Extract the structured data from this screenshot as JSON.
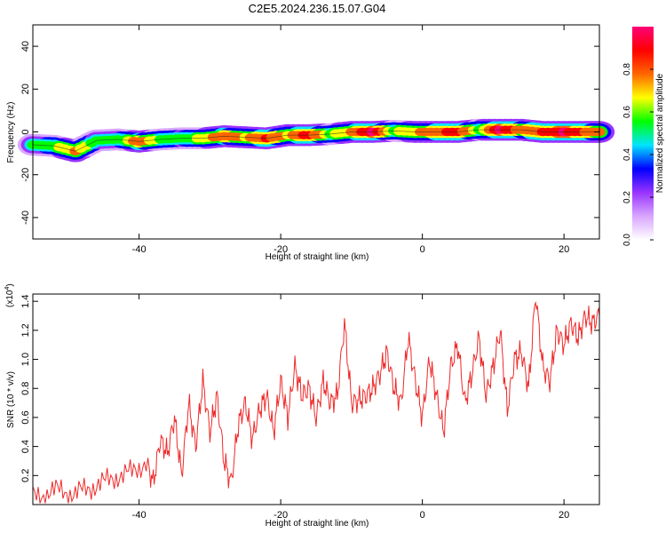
{
  "title": "C2E5.2024.236.15.07.G04",
  "chart_data": [
    {
      "type": "heatmap",
      "xlabel": "Height of straight line (km)",
      "ylabel": "Frequency (Hz)",
      "xlim": [
        -55,
        25
      ],
      "ylim": [
        -50,
        50
      ],
      "xticks": [
        -40,
        -20,
        0,
        20
      ],
      "yticks": [
        -40,
        -20,
        0,
        20,
        40
      ],
      "colorbar": {
        "label": "Normalized spectral amplitude",
        "range": [
          0.0,
          1.0
        ],
        "ticks": [
          0.0,
          0.2,
          0.4,
          0.6,
          0.8
        ],
        "colors": [
          "#ffffff",
          "#d9a6ff",
          "#9933ff",
          "#0000ff",
          "#00e5ff",
          "#00ff00",
          "#ffff00",
          "#ff6600",
          "#ff0000",
          "#ff0077"
        ]
      },
      "ridge": [
        {
          "x": -55,
          "f": -6.0,
          "a": 0.5
        },
        {
          "x": -52,
          "f": -6.5,
          "a": 0.6
        },
        {
          "x": -49,
          "f": -9.0,
          "a": 0.75
        },
        {
          "x": -46,
          "f": -4.0,
          "a": 0.55
        },
        {
          "x": -43,
          "f": -3.5,
          "a": 0.5
        },
        {
          "x": -40,
          "f": -4.5,
          "a": 0.8
        },
        {
          "x": -37,
          "f": -3.5,
          "a": 0.6
        },
        {
          "x": -34,
          "f": -3.0,
          "a": 0.55
        },
        {
          "x": -31,
          "f": -3.0,
          "a": 0.65
        },
        {
          "x": -28,
          "f": -2.0,
          "a": 0.8
        },
        {
          "x": -25,
          "f": -2.5,
          "a": 0.7
        },
        {
          "x": -22,
          "f": -3.0,
          "a": 0.85
        },
        {
          "x": -19,
          "f": -1.5,
          "a": 0.7
        },
        {
          "x": -16,
          "f": -1.5,
          "a": 0.9
        },
        {
          "x": -13,
          "f": -1.0,
          "a": 0.6
        },
        {
          "x": -10,
          "f": 0.0,
          "a": 0.75
        },
        {
          "x": -7,
          "f": 0.0,
          "a": 0.95
        },
        {
          "x": -4,
          "f": 0.5,
          "a": 0.6
        },
        {
          "x": -1,
          "f": 0.0,
          "a": 0.7
        },
        {
          "x": 2,
          "f": 0.0,
          "a": 0.8
        },
        {
          "x": 5,
          "f": 0.0,
          "a": 0.9
        },
        {
          "x": 8,
          "f": 1.0,
          "a": 0.6
        },
        {
          "x": 11,
          "f": 1.0,
          "a": 0.95
        },
        {
          "x": 14,
          "f": 1.0,
          "a": 0.75
        },
        {
          "x": 17,
          "f": 0.0,
          "a": 0.85
        },
        {
          "x": 20,
          "f": 0.0,
          "a": 0.95
        },
        {
          "x": 23,
          "f": 0.0,
          "a": 0.8
        },
        {
          "x": 25,
          "f": 0.0,
          "a": 0.75
        }
      ]
    },
    {
      "type": "line",
      "xlabel": "Height of straight line (km)",
      "ylabel": "SNR (10 * v/v)",
      "yscale_label": "(x10",
      "yscale_exp": "4",
      "yscale_close": ")",
      "xlim": [
        -55,
        25
      ],
      "ylim": [
        0,
        1.45
      ],
      "xticks": [
        -40,
        -20,
        0,
        20
      ],
      "yticks": [
        0.2,
        0.4,
        0.6,
        0.8,
        1.0,
        1.2,
        1.4
      ],
      "color": "#ee2a2a",
      "series": [
        {
          "name": "SNR",
          "x": [
            -55,
            -53,
            -51,
            -49,
            -47,
            -45,
            -43,
            -41,
            -39,
            -38,
            -37,
            -36,
            -35,
            -34,
            -33,
            -32,
            -31,
            -30,
            -29,
            -28,
            -27,
            -26,
            -25,
            -24,
            -23,
            -22,
            -21,
            -20,
            -19,
            -18,
            -17,
            -16,
            -15,
            -14,
            -13,
            -12,
            -11,
            -10,
            -9,
            -8,
            -7,
            -6,
            -5,
            -4,
            -3,
            -2,
            -1,
            0,
            1,
            2,
            3,
            4,
            5,
            6,
            7,
            8,
            9,
            10,
            11,
            12,
            13,
            14,
            15,
            16,
            17,
            18,
            19,
            20,
            21,
            22,
            23,
            24,
            25
          ],
          "y": [
            0.05,
            0.08,
            0.1,
            0.07,
            0.12,
            0.15,
            0.2,
            0.22,
            0.3,
            0.15,
            0.45,
            0.35,
            0.6,
            0.2,
            0.7,
            0.4,
            0.85,
            0.5,
            0.75,
            0.3,
            0.15,
            0.55,
            0.7,
            0.45,
            0.65,
            0.75,
            0.5,
            0.85,
            0.6,
            0.95,
            0.75,
            0.8,
            0.6,
            0.85,
            0.7,
            0.75,
            1.25,
            0.7,
            0.72,
            0.75,
            0.8,
            0.9,
            1.05,
            0.8,
            0.7,
            1.15,
            0.85,
            0.6,
            1.0,
            0.75,
            0.5,
            0.95,
            1.1,
            0.7,
            0.9,
            1.15,
            0.75,
            0.95,
            1.2,
            0.65,
            1.0,
            1.05,
            0.8,
            1.45,
            0.95,
            0.85,
            1.2,
            1.1,
            1.25,
            1.15,
            1.3,
            1.25,
            1.3
          ]
        }
      ]
    }
  ]
}
